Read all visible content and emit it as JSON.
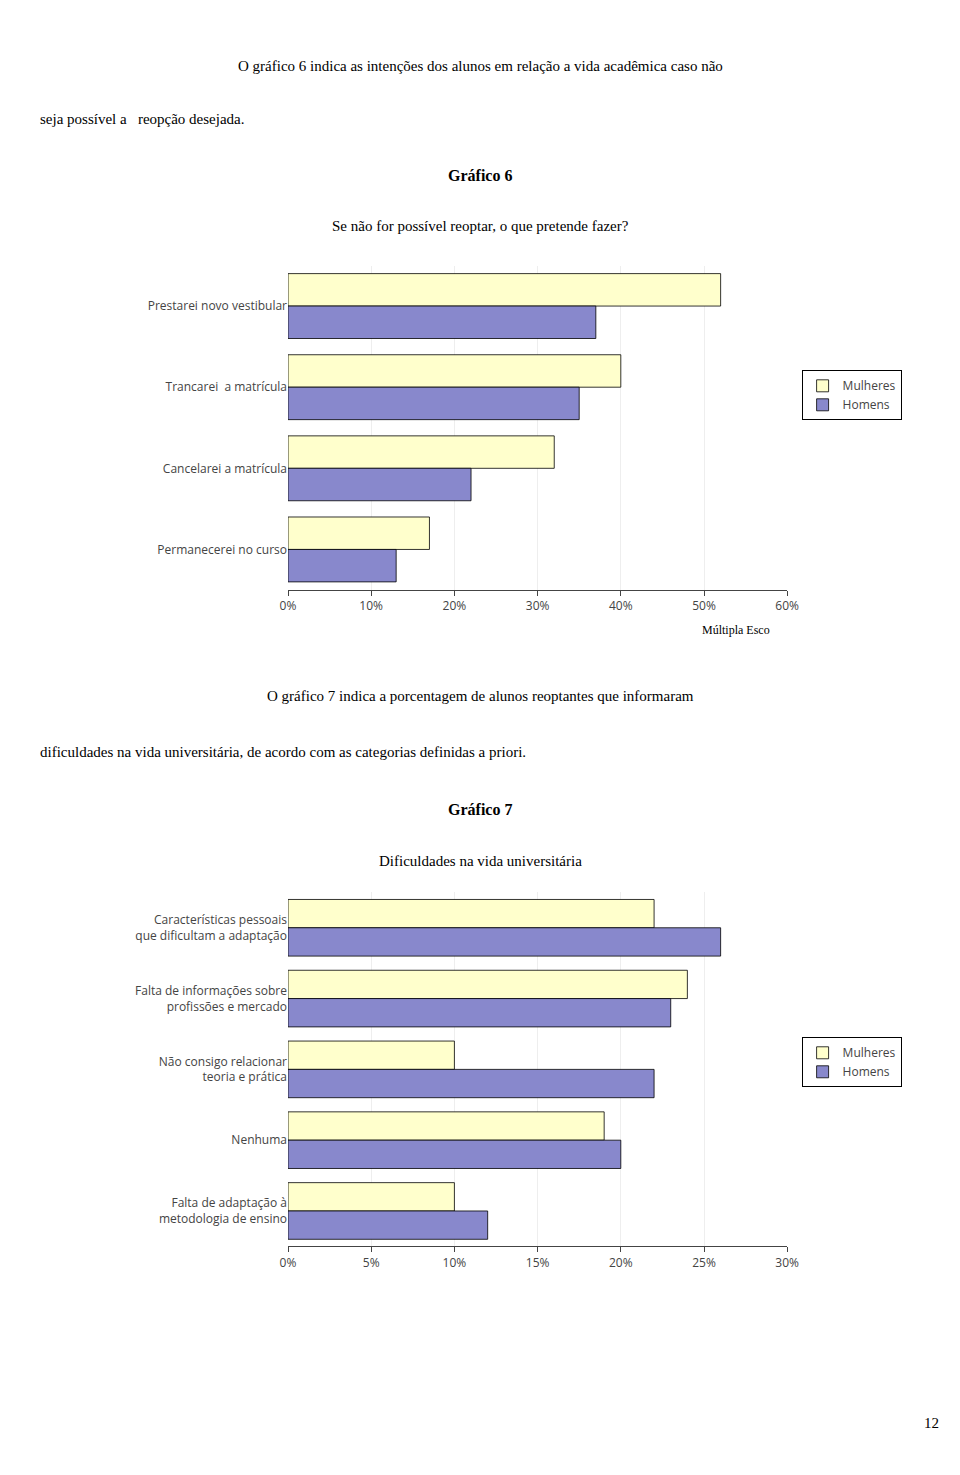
{
  "page_texts": [
    "O gráfico 6 indica as intenções dos alunos em relação a vida acadêmica caso não",
    "seja possível a   reopção desejada.",
    "O gráfico 7 indica a porcentagem de alunos reoptantes que informaram",
    "dificuldades na vida universitária, de acordo com as categorias definidas a priori.",
    "12"
  ],
  "chart_data": [
    {
      "type": "bar",
      "orientation": "horizontal",
      "title": "Gráfico 6",
      "subtitle": "Se não for possível reoptar, o que pretende fazer?",
      "categories": [
        "Prestarei novo vestibular",
        "Trancarei  a matrícula",
        "Cancelarei a matrícula",
        "Permanecerei no curso"
      ],
      "series": [
        {
          "name": "Mulheres",
          "color": "#FFFFCC",
          "values": [
            52,
            40,
            32,
            17
          ]
        },
        {
          "name": "Homens",
          "color": "#8888CC",
          "values": [
            37,
            35,
            22,
            13
          ]
        }
      ],
      "xlim": [
        0,
        60
      ],
      "xticks": [
        {
          "value": 0,
          "label": "0%"
        },
        {
          "value": 10,
          "label": "10%"
        },
        {
          "value": 20,
          "label": "20%"
        },
        {
          "value": 30,
          "label": "30%"
        },
        {
          "value": 40,
          "label": "40%"
        },
        {
          "value": 50,
          "label": "50%"
        },
        {
          "value": 60,
          "label": "60%"
        }
      ],
      "grid": true,
      "legend": "right",
      "annotations": [
        "Múltipla Esco"
      ]
    },
    {
      "type": "bar",
      "orientation": "horizontal",
      "title": "Gráfico 7",
      "subtitle": "Dificuldades na vida universitária",
      "categories": [
        "Características pessoais\nque dificultam a adaptação",
        "Falta de informações sobre\nprofissões e mercado",
        "Não consigo relacionar\nteoria e prática",
        "Nenhuma",
        "Falta de adaptação à\nmetodologia de ensino"
      ],
      "series": [
        {
          "name": "Mulheres",
          "color": "#FFFFCC",
          "values": [
            22,
            24,
            10,
            19,
            10
          ]
        },
        {
          "name": "Homens",
          "color": "#8888CC",
          "values": [
            26,
            23,
            22,
            20,
            12
          ]
        }
      ],
      "xlim": [
        0,
        30
      ],
      "xticks": [
        {
          "value": 0,
          "label": "0%"
        },
        {
          "value": 5,
          "label": "5%"
        },
        {
          "value": 10,
          "label": "10%"
        },
        {
          "value": 15,
          "label": "15%"
        },
        {
          "value": 20,
          "label": "20%"
        },
        {
          "value": 25,
          "label": "25%"
        },
        {
          "value": 30,
          "label": "30%"
        }
      ],
      "grid": true,
      "legend": "right"
    }
  ]
}
